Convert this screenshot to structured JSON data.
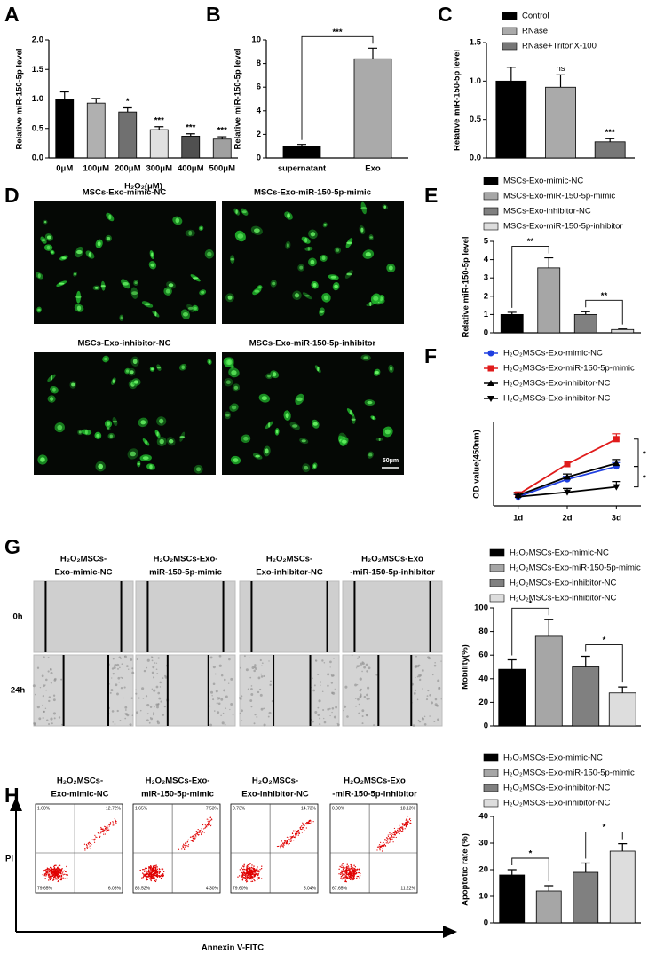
{
  "chart_data": [
    {
      "type": "bar",
      "panel": "A",
      "ylabel": "Relative miR-150-5p level",
      "xlabel": "H₂O₂(μM)",
      "categories": [
        "0μM",
        "100μM",
        "200μM",
        "300μM",
        "400μM",
        "500μM"
      ],
      "values": [
        1.0,
        0.93,
        0.78,
        0.48,
        0.37,
        0.32
      ],
      "errors": [
        0.12,
        0.08,
        0.07,
        0.05,
        0.04,
        0.04
      ],
      "colors": [
        "#000000",
        "#b0b0b0",
        "#707070",
        "#e0e0e0",
        "#505050",
        "#a0a0a0"
      ],
      "sig": [
        null,
        null,
        "*",
        "***",
        "***",
        "***"
      ],
      "ylim": [
        0,
        2
      ],
      "yticks": [
        {
          "value": 0,
          "label": "0.0"
        },
        0.5,
        {
          "value": 1,
          "label": "1.0"
        },
        1.5,
        {
          "value": 2,
          "label": "2.0"
        }
      ]
    },
    {
      "type": "bar",
      "panel": "B",
      "ylabel": "Relative miR-150-5p level",
      "categories": [
        "supernatant",
        "Exo"
      ],
      "values": [
        1.0,
        8.4
      ],
      "errors": [
        0.15,
        0.9
      ],
      "colors": [
        "#000000",
        "#aaaaaa"
      ],
      "brackets": [
        {
          "between": [
            "supernatant",
            "Exo"
          ],
          "label": "***"
        }
      ],
      "ylim": [
        0,
        10
      ],
      "yticks": [
        0,
        2,
        4,
        6,
        8,
        10
      ]
    },
    {
      "type": "bar",
      "panel": "C",
      "ylabel": "Relative miR-150-5p level",
      "legend": "top-right",
      "categories": [
        "Control",
        "RNase",
        "RNase+TritonX-100"
      ],
      "values": [
        1.0,
        0.92,
        0.21
      ],
      "errors": [
        0.18,
        0.16,
        0.04
      ],
      "colors": [
        "#000000",
        "#aaaaaa",
        "#777777"
      ],
      "sig": [
        null,
        "ns",
        "***"
      ],
      "ylim": [
        0,
        1.5
      ],
      "yticks": [
        {
          "value": 0,
          "label": "0.0"
        },
        0.5,
        {
          "value": 1,
          "label": "1.0"
        },
        1.5
      ]
    },
    {
      "type": "bar",
      "panel": "E",
      "ylabel": "Relative miR-150-5p level",
      "legend": "top-right",
      "categories": [
        "MSCs-Exo-mimic-NC",
        "MSCs-Exo-miR-150-5p-mimic",
        "MSCs-Exo-inhibitor-NC",
        "MSCs-Exo-miR-150-5p-inhibitor"
      ],
      "values": [
        1.0,
        3.55,
        1.0,
        0.18
      ],
      "errors": [
        0.12,
        0.55,
        0.15,
        0.03
      ],
      "colors": [
        "#000000",
        "#a6a6a6",
        "#808080",
        "#dddddd"
      ],
      "brackets": [
        {
          "between": [
            "MSCs-Exo-mimic-NC",
            "MSCs-Exo-miR-150-5p-mimic"
          ],
          "label": "**"
        },
        {
          "between": [
            "MSCs-Exo-inhibitor-NC",
            "MSCs-Exo-miR-150-5p-inhibitor"
          ],
          "label": "**"
        }
      ],
      "ylim": [
        0,
        5
      ],
      "yticks": [
        0,
        1,
        2,
        3,
        4,
        5
      ]
    },
    {
      "type": "line",
      "panel": "F",
      "ylabel": "OD value(450nm)",
      "legend": "top-right",
      "categories": [
        "1d",
        "2d",
        "3d"
      ],
      "series": [
        {
          "name": "H₂O₂MSCs-Exo-mimic-NC",
          "color": "#1f3fe0",
          "marker": "circle",
          "values": [
            0.22,
            0.45,
            0.62
          ],
          "errors": [
            0.03,
            0.04,
            0.05
          ]
        },
        {
          "name": "H₂O₂MSCs-Exo-miR-150-5p-mimic",
          "color": "#e01b1b",
          "marker": "square",
          "values": [
            0.25,
            0.65,
            0.98
          ],
          "errors": [
            0.03,
            0.04,
            0.07
          ]
        },
        {
          "name": "H₂O₂MSCs-Exo-inhibitor-NC",
          "color": "#000000",
          "marker": "triangle-up",
          "values": [
            0.24,
            0.48,
            0.66
          ],
          "errors": [
            0.03,
            0.04,
            0.05
          ]
        },
        {
          "name": "H₂O₂MSCs-Exo-inhibitor-NC",
          "color": "#000000",
          "marker": "triangle-down",
          "values": [
            0.22,
            0.28,
            0.35
          ],
          "errors": [
            0.03,
            0.05,
            0.07
          ]
        }
      ],
      "annotations": [
        "*",
        "*"
      ],
      "ylim": [
        0.1,
        1.2
      ]
    },
    {
      "type": "bar",
      "ylabel": "Mobility(%)",
      "legend": "top-right",
      "categories": [
        "H₂O₂MSCs-Exo-mimic-NC",
        "H₂O₂MSCs-Exo-miR-150-5p-mimic",
        "H₂O₂MSCs-Exo-inhibitor-NC",
        "H₂O₂MSCs-Exo-inhibitor-NC"
      ],
      "values": [
        48,
        76,
        50,
        28
      ],
      "errors": [
        8,
        14,
        9,
        5
      ],
      "colors": [
        "#000000",
        "#a6a6a6",
        "#808080",
        "#dddddd"
      ],
      "brackets": [
        {
          "between": [
            0,
            1
          ],
          "label": "*"
        },
        {
          "between": [
            2,
            3
          ],
          "label": "*"
        }
      ],
      "ylim": [
        0,
        100
      ],
      "yticks": [
        0,
        20,
        40,
        60,
        80,
        100
      ]
    },
    {
      "type": "bar",
      "ylabel": "Apoptotic rate (%)",
      "legend": "top-right",
      "categories": [
        "H₂O₂MSCs-Exo-mimic-NC",
        "H₂O₂MSCs-Exo-miR-150-5p-mimic",
        "H₂O₂MSCs-Exo-inhibitor-NC",
        "H₂O₂MSCs-Exo-inhibitor-NC"
      ],
      "values": [
        18,
        12,
        19,
        27
      ],
      "errors": [
        2,
        2,
        3.5,
        2.8
      ],
      "colors": [
        "#000000",
        "#a6a6a6",
        "#808080",
        "#dddddd"
      ],
      "brackets": [
        {
          "between": [
            0,
            1
          ],
          "label": "*"
        },
        {
          "between": [
            2,
            3
          ],
          "label": "*"
        }
      ],
      "ylim": [
        0,
        40
      ],
      "yticks": [
        0,
        10,
        20,
        30,
        40
      ]
    }
  ],
  "fluorescence": {
    "panel": "D",
    "labels": [
      "MSCs-Exo-mimic-NC",
      "MSCs-Exo-miR-150-5p-mimic",
      "MSCs-Exo-inhibitor-NC",
      "MSCs-Exo-miR-150-5p-inhibitor"
    ],
    "scale_bar": "50μm"
  },
  "wound_healing": {
    "panel": "G",
    "groups": [
      [
        "H₂O₂MSCs-",
        "Exo-mimic-NC"
      ],
      [
        "H₂O₂MSCs-Exo-",
        "miR-150-5p-mimic"
      ],
      [
        "H₂O₂MSCs-",
        "Exo-inhibitor-NC"
      ],
      [
        "H₂O₂MSCs-Exo",
        "-miR-150-5p-inhibitor"
      ]
    ],
    "times": [
      "0h",
      "24h"
    ]
  },
  "flow_cytometry": {
    "panel": "H",
    "groups": [
      [
        "H₂O₂MSCs-",
        "Exo-mimic-NC"
      ],
      [
        "H₂O₂MSCs-Exo-",
        "miR-150-5p-mimic"
      ],
      [
        "H₂O₂MSCs-",
        "Exo-inhibitor-NC"
      ],
      [
        "H₂O₂MSCs-Exo",
        "-miR-150-5p-inhibitor"
      ]
    ],
    "y_axis": "PI",
    "x_axis": "Annexin V-FITC",
    "quadrants": [
      [
        "1.60%",
        "12.72%",
        "79.65%",
        "6.03%"
      ],
      [
        "1.65%",
        "7.53%",
        "86.52%",
        "4.30%"
      ],
      [
        "0.73%",
        "14.73%",
        "79.60%",
        "5.04%"
      ],
      [
        "0.90%",
        "18.13%",
        "67.65%",
        "11.22%"
      ]
    ]
  }
}
